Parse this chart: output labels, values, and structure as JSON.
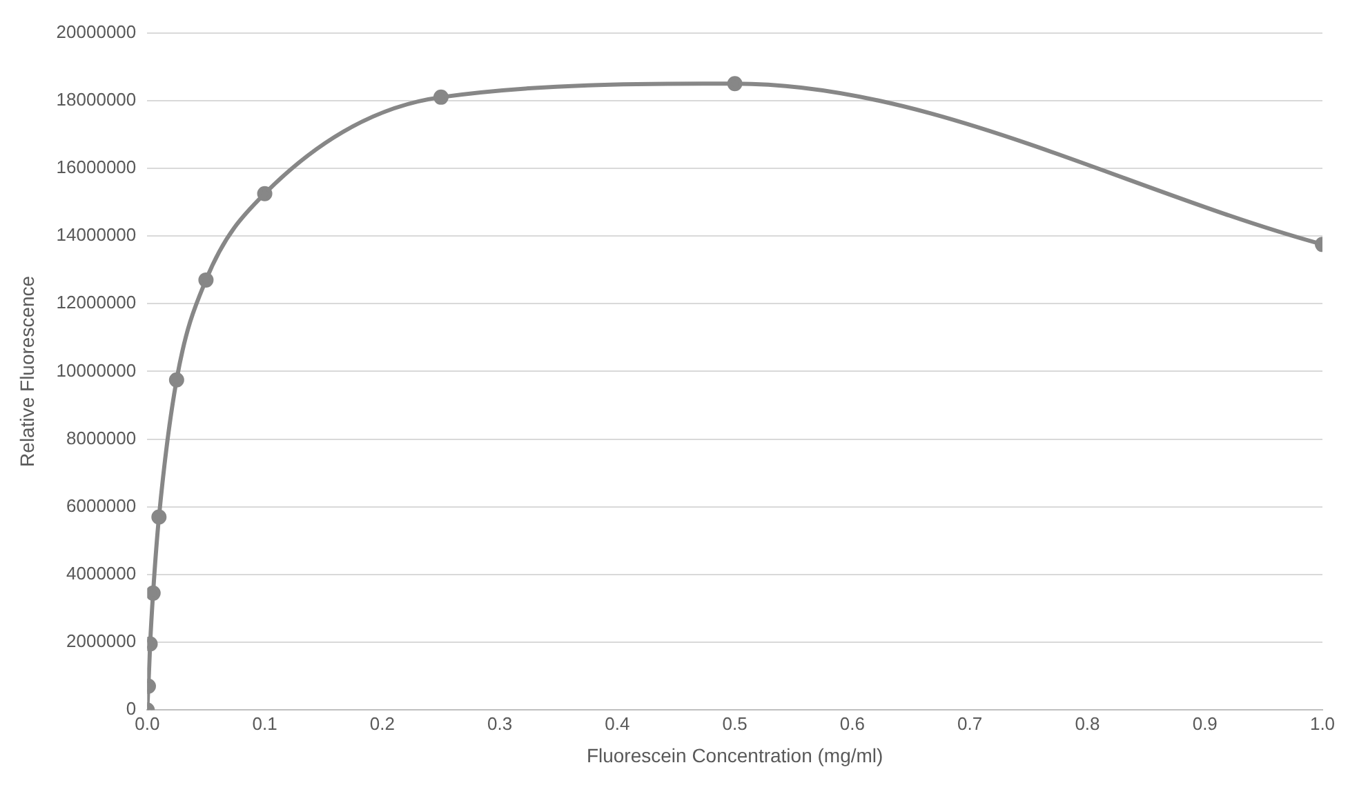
{
  "chart_data": {
    "type": "line",
    "xlabel": "Fluorescein Concentration (mg/ml)",
    "ylabel": "Relative Fluorescence",
    "x": [
      0,
      0.001,
      0.0025,
      0.005,
      0.01,
      0.025,
      0.05,
      0.1,
      0.25,
      0.5,
      1.0
    ],
    "series": [
      {
        "color": "#878787",
        "values": [
          0,
          700000,
          1950000,
          3450000,
          5700000,
          9750000,
          12700000,
          15250000,
          18100000,
          18500000,
          13750000
        ]
      }
    ],
    "xlim": [
      0,
      1.0
    ],
    "xticks": [
      {
        "value": 0,
        "label": "0.0"
      },
      0.1,
      0.2,
      0.3,
      0.4,
      0.5,
      0.6,
      0.7,
      0.8,
      0.9,
      {
        "value": 1.0,
        "label": "1.0"
      }
    ],
    "ylim": [
      0,
      20000000
    ],
    "yticks": [
      0,
      2000000,
      4000000,
      6000000,
      8000000,
      10000000,
      12000000,
      14000000,
      16000000,
      18000000,
      20000000
    ],
    "grid": "y",
    "legend": false,
    "marker": "circle",
    "line_style": "solid"
  }
}
